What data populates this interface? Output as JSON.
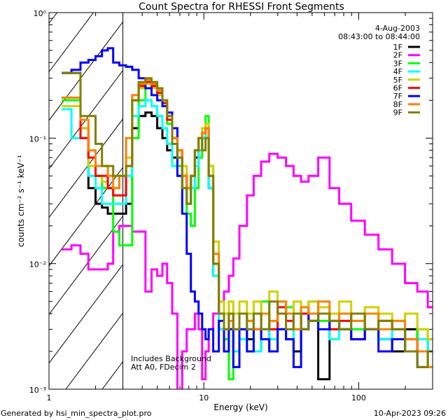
{
  "chart_data": {
    "type": "line",
    "title": "Count Spectra for RHESSI Front Segments",
    "xlabel": "Energy (keV)",
    "ylabel": "counts cm⁻² s⁻¹ keV⁻¹",
    "xscale": "log",
    "yscale": "log",
    "xlim": [
      1,
      300
    ],
    "ylim": [
      0.001,
      1
    ],
    "x_tick_labels": [
      "1",
      "10",
      "100"
    ],
    "x_tick_values": [
      1,
      10,
      100
    ],
    "y_tick_labels": [
      "10⁰",
      "10⁻¹",
      "10⁻²",
      "10⁻³"
    ],
    "y_tick_values": [
      1,
      0.1,
      0.01,
      0.001
    ],
    "shaded_region_keV": [
      1,
      3
    ],
    "legend_placement": "top-right",
    "date": "4-Aug-2003",
    "time_range": "08:43:00 to 08:44:00",
    "annotations": [
      "Includes Background",
      "Att A0, FDecim 2"
    ],
    "energies": [
      1.3,
      1.5,
      1.7,
      1.9,
      2.1,
      2.3,
      2.5,
      2.7,
      3.0,
      3.3,
      3.6,
      4.0,
      4.4,
      4.8,
      5.2,
      5.6,
      6.0,
      6.5,
      7,
      7.5,
      8,
      8.5,
      9,
      9.5,
      10,
      10.5,
      11,
      12,
      13,
      14,
      15,
      16,
      18,
      20,
      22,
      25,
      28,
      32,
      36,
      40,
      45,
      50,
      60,
      70,
      80,
      100,
      120,
      150,
      180,
      220,
      260,
      300
    ],
    "series": [
      {
        "name": "1F",
        "color": "#000000",
        "values": [
          0.33,
          0.33,
          0.12,
          0.04,
          0.03,
          0.028,
          0.025,
          0.025,
          0.025,
          0.03,
          0.12,
          0.15,
          0.16,
          0.15,
          0.12,
          0.1,
          0.08,
          0.07,
          0.07,
          0.05,
          0.03,
          0.05,
          0.07,
          0.08,
          0.1,
          0.12,
          0.04,
          0.008,
          0.003,
          0.0025,
          0.003,
          0.002,
          0.003,
          0.0025,
          0.002,
          0.003,
          0.002,
          0.003,
          0.0025,
          0.002,
          0.003,
          0.0035,
          0.0012,
          0.003,
          0.003,
          0.0025,
          0.003,
          0.0025,
          0.002,
          0.003,
          0.002,
          0.0025
        ]
      },
      {
        "name": "2F",
        "color": "#ff00ff",
        "values": [
          0.013,
          0.014,
          0.012,
          0.009,
          0.009,
          0.009,
          0.01,
          0.018,
          0.02,
          0.02,
          0.018,
          0.018,
          0.006,
          0.009,
          0.008,
          0.01,
          0.007,
          0.004,
          0.0009,
          0.002,
          0.003,
          0.003,
          0.004,
          0.003,
          0.0012,
          0.002,
          0.003,
          0.004,
          0.005,
          0.006,
          0.008,
          0.011,
          0.02,
          0.035,
          0.05,
          0.065,
          0.075,
          0.07,
          0.06,
          0.05,
          0.045,
          0.05,
          0.07,
          0.04,
          0.03,
          0.022,
          0.017,
          0.013,
          0.01,
          0.007,
          0.006,
          0.0045
        ]
      },
      {
        "name": "3F",
        "color": "#00ff00",
        "values": [
          0.2,
          0.2,
          0.1,
          0.06,
          0.05,
          0.04,
          0.04,
          0.018,
          0.014,
          0.014,
          0.1,
          0.2,
          0.25,
          0.26,
          0.22,
          0.18,
          0.13,
          0.09,
          0.06,
          0.04,
          0.025,
          0.02,
          0.04,
          0.07,
          0.1,
          0.15,
          0.06,
          0.01,
          0.003,
          0.0025,
          0.0012,
          0.002,
          0.004,
          0.003,
          0.004,
          0.005,
          0.003,
          0.004,
          0.0045,
          0.003,
          0.004,
          0.005,
          0.0035,
          0.003,
          0.004,
          0.003,
          0.004,
          0.0035,
          0.003,
          0.002,
          0.003,
          0.002
        ]
      },
      {
        "name": "4F",
        "color": "#00ffff",
        "values": [
          0.17,
          0.1,
          0.1,
          0.05,
          0.04,
          0.03,
          0.03,
          0.03,
          0.03,
          0.05,
          0.15,
          0.18,
          0.2,
          0.18,
          0.15,
          0.12,
          0.09,
          0.06,
          0.05,
          0.04,
          0.03,
          0.04,
          0.06,
          0.08,
          0.1,
          0.12,
          0.04,
          0.008,
          0.003,
          0.002,
          0.003,
          0.002,
          0.0025,
          0.003,
          0.002,
          0.003,
          0.0025,
          0.003,
          0.0025,
          0.003,
          0.003,
          0.0035,
          0.003,
          0.0025,
          0.003,
          0.0035,
          0.003,
          0.0025,
          0.003,
          0.002,
          0.0025,
          0.002
        ]
      },
      {
        "name": "5F",
        "color": "#d0d000",
        "values": [
          0.18,
          0.18,
          0.12,
          0.06,
          0.05,
          0.045,
          0.04,
          0.04,
          0.05,
          0.07,
          0.2,
          0.25,
          0.27,
          0.25,
          0.22,
          0.18,
          0.14,
          0.1,
          0.08,
          0.06,
          0.04,
          0.05,
          0.08,
          0.1,
          0.12,
          0.13,
          0.06,
          0.015,
          0.005,
          0.004,
          0.005,
          0.004,
          0.005,
          0.004,
          0.005,
          0.004,
          0.006,
          0.005,
          0.004,
          0.005,
          0.004,
          0.005,
          0.0045,
          0.004,
          0.005,
          0.004,
          0.0045,
          0.004,
          0.0035,
          0.004,
          0.003,
          0.0025
        ]
      },
      {
        "name": "6F",
        "color": "#ff0000",
        "values": [
          0.21,
          0.21,
          0.1,
          0.07,
          0.05,
          0.05,
          0.04,
          0.035,
          0.035,
          0.06,
          0.2,
          0.26,
          0.28,
          0.26,
          0.23,
          0.19,
          0.14,
          0.1,
          0.08,
          0.05,
          0.04,
          0.05,
          0.08,
          0.1,
          0.11,
          0.12,
          0.05,
          0.01,
          0.004,
          0.003,
          0.004,
          0.003,
          0.004,
          0.0035,
          0.003,
          0.004,
          0.003,
          0.0045,
          0.0035,
          0.003,
          0.004,
          0.0035,
          0.004,
          0.003,
          0.0035,
          0.004,
          0.003,
          0.0035,
          0.003,
          0.0025,
          0.002,
          0.002
        ]
      },
      {
        "name": "7F",
        "color": "#0000ff",
        "values": [
          0.33,
          0.35,
          0.4,
          0.42,
          0.45,
          0.5,
          0.52,
          0.4,
          0.38,
          0.37,
          0.35,
          0.3,
          0.25,
          0.22,
          0.2,
          0.18,
          0.16,
          0.12,
          0.05,
          0.025,
          0.012,
          0.006,
          0.005,
          0.004,
          0.003,
          0.0025,
          0.003,
          0.002,
          0.0035,
          0.002,
          0.003,
          0.0015,
          0.003,
          0.002,
          0.003,
          0.0025,
          0.002,
          0.003,
          0.0025,
          0.0015,
          0.003,
          0.004,
          0.003,
          0.0035,
          0.003,
          0.0025,
          0.003,
          0.002,
          0.0025,
          0.002,
          0.0015,
          0.002
        ]
      },
      {
        "name": "8F",
        "color": "#ff8000",
        "values": [
          0.21,
          0.21,
          0.14,
          0.08,
          0.06,
          0.06,
          0.05,
          0.04,
          0.05,
          0.1,
          0.22,
          0.27,
          0.29,
          0.27,
          0.24,
          0.2,
          0.15,
          0.1,
          0.08,
          0.05,
          0.04,
          0.05,
          0.08,
          0.1,
          0.11,
          0.12,
          0.05,
          0.012,
          0.004,
          0.003,
          0.0035,
          0.003,
          0.004,
          0.0035,
          0.003,
          0.004,
          0.0035,
          0.005,
          0.004,
          0.003,
          0.0045,
          0.004,
          0.005,
          0.0035,
          0.004,
          0.0035,
          0.004,
          0.003,
          0.0035,
          0.0025,
          0.002,
          0.0015
        ]
      },
      {
        "name": "9F",
        "color": "#808000",
        "values": [
          0.33,
          0.33,
          0.15,
          0.15,
          0.09,
          0.06,
          0.06,
          0.05,
          0.05,
          0.06,
          0.2,
          0.28,
          0.3,
          0.28,
          0.25,
          0.2,
          0.15,
          0.09,
          0.07,
          0.04,
          0.03,
          0.05,
          0.08,
          0.1,
          0.08,
          0.1,
          0.05,
          0.01,
          0.004,
          0.003,
          0.004,
          0.003,
          0.004,
          0.003,
          0.004,
          0.003,
          0.005,
          0.004,
          0.003,
          0.004,
          0.003,
          0.0035,
          0.004,
          0.0035,
          0.003,
          0.004,
          0.003,
          0.0035,
          0.003,
          0.002,
          0.0015,
          0.002
        ]
      }
    ]
  },
  "footer": {
    "generated_by": "Generated by hsi_min_spectra_plot.pro",
    "timestamp": "10-Apr-2023 09:26"
  }
}
